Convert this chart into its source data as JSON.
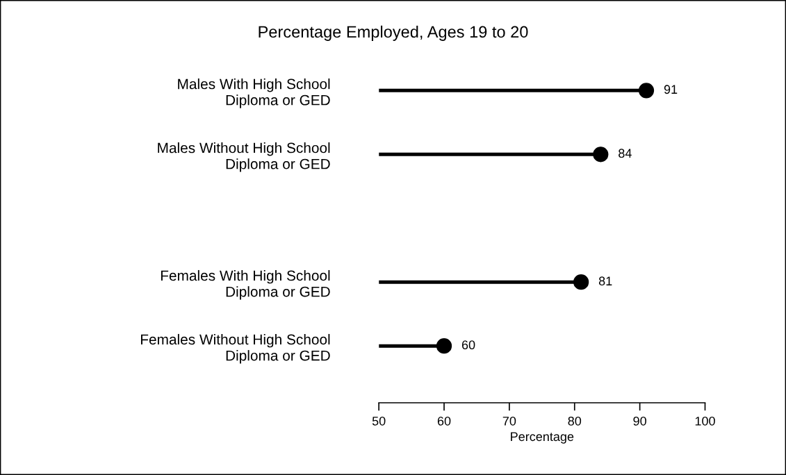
{
  "chart_data": {
    "type": "lollipop",
    "orientation": "horizontal",
    "title": "Percentage Employed, Ages 19 to 20",
    "xlabel": "Percentage",
    "categories": [
      "Males With High School\nDiploma or GED",
      "Males Without High School\nDiploma or GED",
      null,
      "Females With High School\nDiploma or GED",
      "Females Without High School\nDiploma or GED"
    ],
    "values": [
      91,
      84,
      null,
      81,
      60
    ],
    "color": "#000000",
    "marker": "circle",
    "data_labels": true,
    "xlim": [
      50,
      100
    ],
    "xticks": [
      50,
      60,
      70,
      80,
      90,
      100
    ]
  }
}
